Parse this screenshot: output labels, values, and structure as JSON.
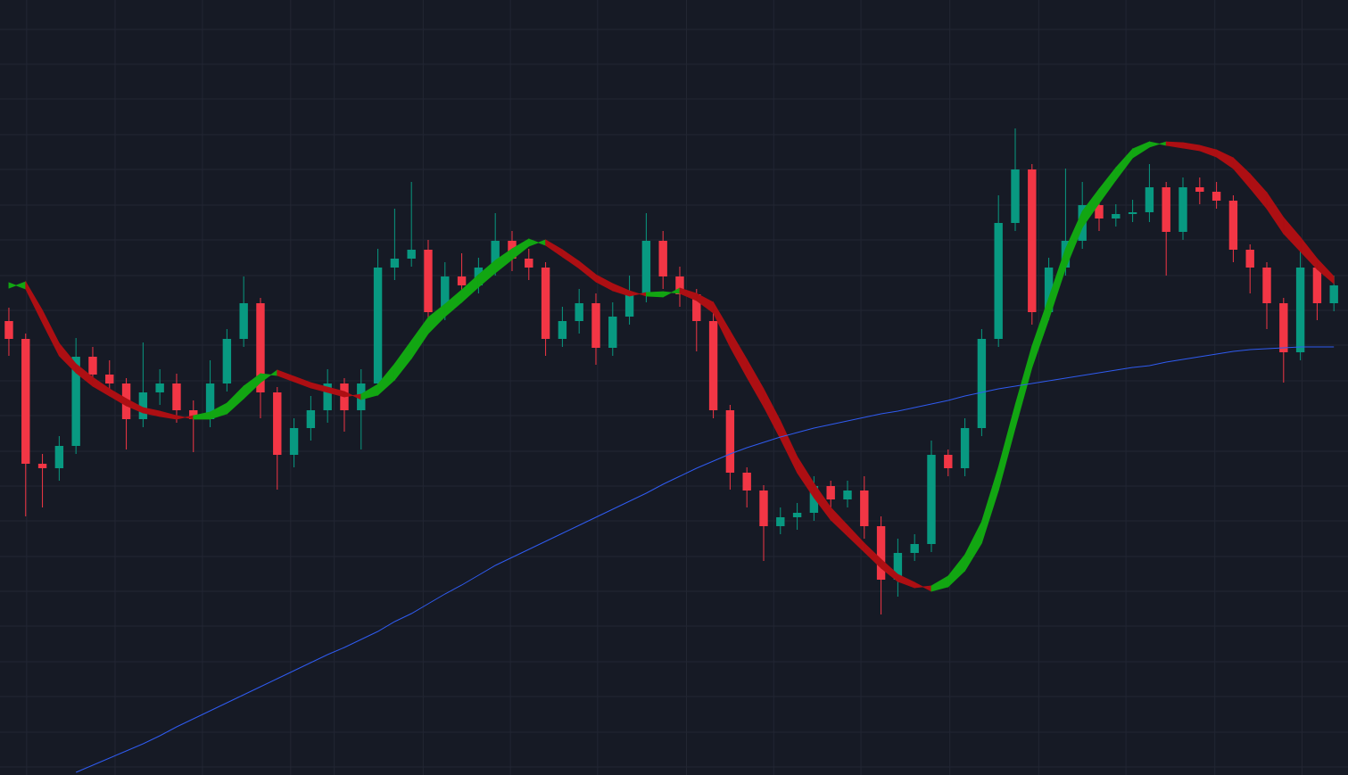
{
  "chart_data": {
    "type": "candlestick",
    "open": [
      509,
      489,
      349,
      344,
      369,
      469,
      449,
      439,
      399,
      429,
      439,
      409,
      399,
      439,
      489,
      529,
      429,
      359,
      389,
      409,
      439,
      409,
      439,
      569,
      579,
      589,
      519,
      559,
      549,
      569,
      599,
      579,
      569,
      489,
      509,
      529,
      479,
      514,
      539,
      599,
      559,
      539,
      509,
      409,
      339,
      319,
      279,
      289,
      294,
      324,
      309,
      319,
      279,
      219,
      249,
      259,
      359,
      344,
      389,
      489,
      619,
      679,
      519,
      569,
      599,
      639,
      624,
      629,
      631,
      659,
      609,
      659,
      654,
      644,
      589,
      569,
      529,
      474,
      569,
      529
    ],
    "high": [
      524,
      495,
      360,
      380,
      490,
      480,
      465,
      445,
      485,
      455,
      450,
      420,
      465,
      500,
      559,
      535,
      435,
      400,
      425,
      455,
      445,
      455,
      590,
      635,
      665,
      600,
      575,
      585,
      580,
      630,
      610,
      590,
      575,
      525,
      545,
      540,
      530,
      560,
      630,
      610,
      570,
      545,
      520,
      415,
      345,
      325,
      300,
      305,
      335,
      330,
      330,
      335,
      290,
      265,
      270,
      375,
      365,
      400,
      500,
      650,
      725,
      685,
      580,
      680,
      665,
      645,
      640,
      645,
      685,
      665,
      670,
      670,
      665,
      650,
      595,
      575,
      535,
      590,
      575,
      560
    ],
    "low": [
      470,
      290,
      300,
      330,
      360,
      440,
      425,
      365,
      390,
      415,
      395,
      362,
      390,
      430,
      480,
      400,
      320,
      345,
      375,
      395,
      385,
      365,
      430,
      555,
      570,
      505,
      510,
      535,
      540,
      560,
      565,
      555,
      470,
      480,
      495,
      460,
      470,
      505,
      530,
      545,
      525,
      475,
      400,
      320,
      300,
      240,
      270,
      275,
      285,
      300,
      300,
      265,
      180,
      200,
      240,
      250,
      335,
      335,
      380,
      480,
      610,
      505,
      510,
      560,
      590,
      610,
      615,
      620,
      620,
      560,
      600,
      640,
      635,
      575,
      540,
      500,
      440,
      465,
      510,
      520
    ],
    "close": [
      489,
      349,
      344,
      369,
      469,
      449,
      439,
      399,
      429,
      439,
      409,
      399,
      439,
      489,
      529,
      429,
      359,
      389,
      409,
      439,
      409,
      439,
      569,
      579,
      589,
      519,
      559,
      549,
      569,
      599,
      579,
      569,
      489,
      509,
      529,
      479,
      514,
      539,
      599,
      559,
      539,
      509,
      409,
      339,
      319,
      279,
      289,
      294,
      324,
      309,
      319,
      279,
      219,
      249,
      259,
      359,
      344,
      389,
      489,
      619,
      679,
      519,
      569,
      599,
      639,
      624,
      629,
      631,
      659,
      609,
      659,
      654,
      644,
      589,
      569,
      529,
      474,
      569,
      529,
      549
    ],
    "up_color": "#089981",
    "down_color": "#f23645",
    "xlim": [
      -0.53,
      79.84
    ],
    "ylim": [
      0,
      869
    ],
    "ygrid": [
      836,
      797,
      758,
      718,
      679,
      639,
      600,
      560,
      521,
      482,
      442,
      403,
      363,
      324,
      285,
      245,
      206,
      167,
      127,
      88,
      48,
      9
    ],
    "xgrid": [
      1.06,
      6.33,
      11.54,
      16.8,
      19.4,
      24.7,
      29.9,
      35.1,
      40.4,
      45.6,
      50.8,
      56.1,
      61.4,
      66.6,
      71.9,
      77.1
    ],
    "band": {
      "up_color": "#12a612",
      "down_color": "#ad0f13",
      "fast": [
        552,
        545,
        507,
        470,
        451,
        436,
        425,
        414,
        406,
        402,
        399,
        403,
        407,
        417,
        436,
        450,
        448,
        441,
        434,
        429,
        424,
        427,
        438,
        461,
        487,
        513,
        528,
        544,
        561,
        577,
        590,
        601,
        594,
        581,
        568,
        553,
        543,
        537,
        541,
        542,
        540,
        532,
        518,
        480,
        446,
        413,
        377,
        339,
        311,
        286,
        268,
        250,
        232,
        217,
        210,
        212,
        223,
        247,
        284,
        345,
        415,
        481,
        535,
        590,
        632,
        657,
        681,
        702,
        710,
        706,
        703,
        700,
        693,
        680,
        658,
        635,
        607,
        587,
        567,
        551
      ],
      "slow": [
        546,
        553,
        521,
        484,
        461,
        446,
        433,
        422,
        412,
        408,
        403,
        399,
        399,
        405,
        422,
        440,
        454,
        447,
        440,
        435,
        430,
        421,
        426,
        443,
        467,
        495,
        514,
        530,
        547,
        563,
        578,
        593,
        600,
        589,
        576,
        561,
        551,
        543,
        537,
        536,
        546,
        540,
        530,
        498,
        466,
        433,
        397,
        357,
        327,
        300,
        280,
        260,
        242,
        225,
        216,
        206,
        211,
        229,
        260,
        319,
        389,
        457,
        511,
        568,
        614,
        641,
        667,
        692,
        704,
        710,
        709,
        706,
        701,
        692,
        674,
        653,
        625,
        603,
        579,
        559
      ]
    },
    "line": {
      "color": "#2f5bf0",
      "values": [
        null,
        null,
        null,
        null,
        3,
        11,
        19,
        27,
        35,
        44,
        54,
        63,
        72,
        81,
        90,
        99,
        108,
        117,
        126,
        135,
        143,
        152,
        161,
        172,
        181,
        192,
        203,
        213,
        224,
        235,
        244,
        253,
        262,
        271,
        280,
        289,
        298,
        307,
        316,
        326,
        335,
        344,
        352,
        360,
        367,
        373,
        379,
        384,
        389,
        393,
        397,
        401,
        405,
        408,
        412,
        416,
        420,
        425,
        429,
        433,
        436,
        439,
        442,
        445,
        448,
        451,
        454,
        457,
        459,
        463,
        466,
        469,
        472,
        475,
        477,
        478,
        479,
        480,
        480,
        480
      ]
    }
  }
}
